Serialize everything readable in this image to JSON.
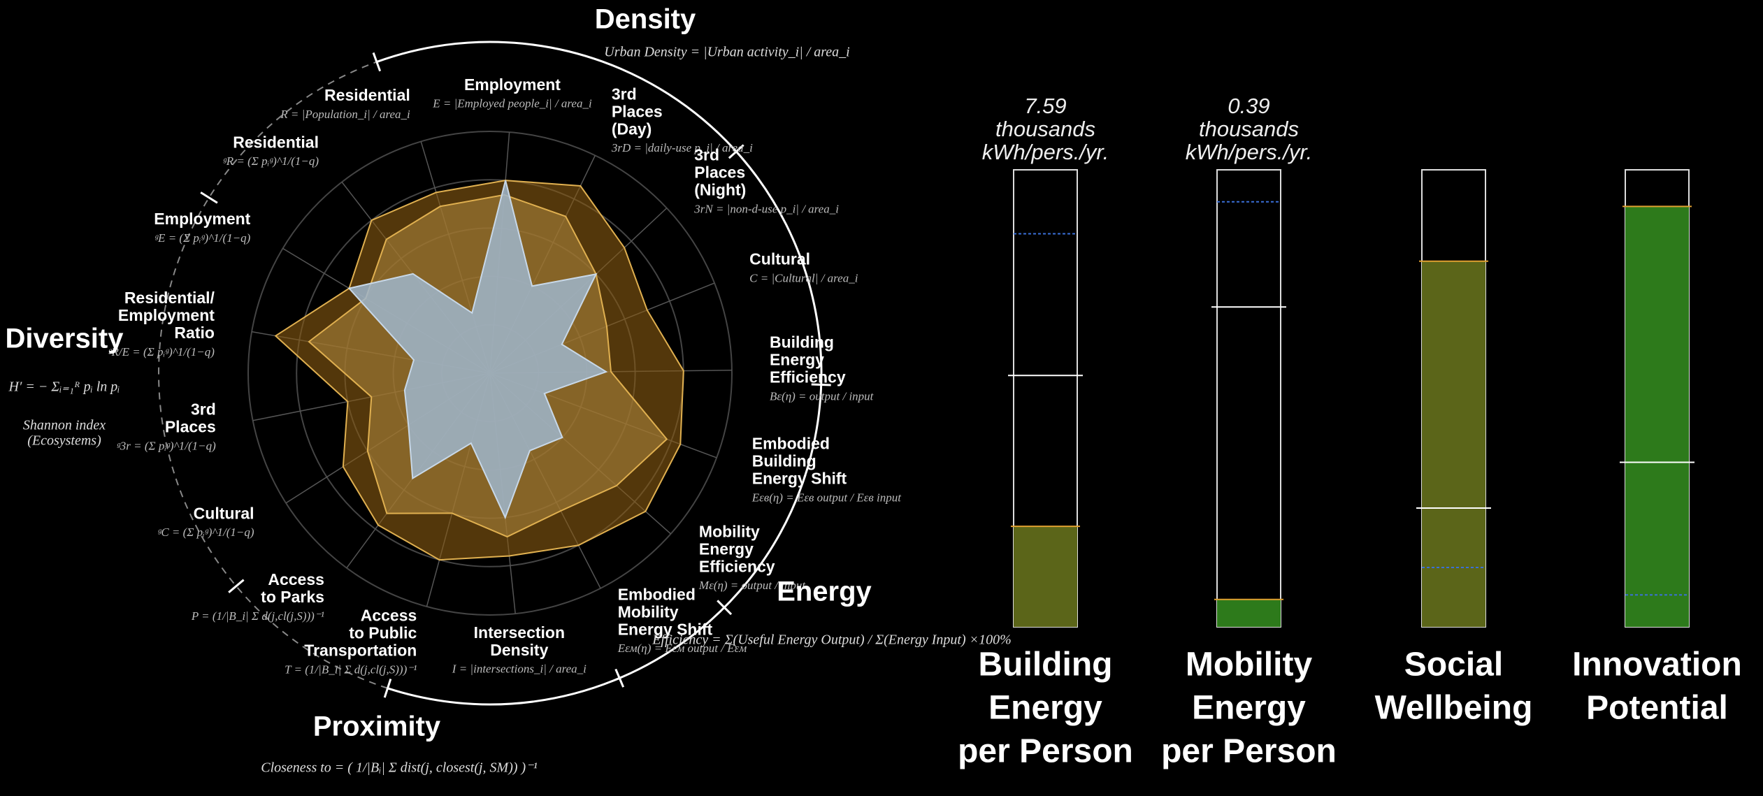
{
  "chart_data": [
    {
      "type": "radar",
      "axes": [
        {
          "lines": [
            "Employment"
          ],
          "formula": "E = |Employed people_i| / area_i"
        },
        {
          "lines": [
            "3rd",
            "Places",
            "(Day)"
          ],
          "formula": "3rD = |daily-use p_i| / area_i"
        },
        {
          "lines": [
            "3rd",
            "Places",
            "(Night)"
          ],
          "formula": "3rN = |non-d-use p_i| / area_i"
        },
        {
          "lines": [
            "Cultural"
          ],
          "formula": "C = |Cultural| / area_i"
        },
        {
          "lines": [
            "Building",
            "Energy",
            "Efficiency"
          ],
          "formula": "Bε(η) = output / input"
        },
        {
          "lines": [
            "Embodied",
            "Building",
            "Energy Shift"
          ],
          "formula": "Eεв(η) = Eεв output / Eεв input"
        },
        {
          "lines": [
            "Mobility",
            "Energy",
            "Efficiency"
          ],
          "formula": "Mε(η) = output / input"
        },
        {
          "lines": [
            "Embodied",
            "Mobility",
            "Energy Shift"
          ],
          "formula": "Eεм(η) = Eεм output / Eεм"
        },
        {
          "lines": [
            "Intersection",
            "Density"
          ],
          "formula": "I = |intersections_i| / area_i"
        },
        {
          "lines": [
            "Access",
            "to Public",
            "Transportation"
          ],
          "formula": "T = (1/|B_i| Σ d(j,cl(j,S)))⁻¹"
        },
        {
          "lines": [
            "Access",
            "to Parks"
          ],
          "formula": "P = (1/|B_i| Σ d(j,cl(j,S)))⁻¹"
        },
        {
          "lines": [
            "Cultural"
          ],
          "formula": "ᵍC = (Σ pᵢᵍ)^1/(1−q)"
        },
        {
          "lines": [
            "3rd",
            "Places"
          ],
          "formula": "ᵍ3r = (Σ pᵢᵍ)^1/(1−q)"
        },
        {
          "lines": [
            "Residential/",
            "Employment",
            "Ratio"
          ],
          "formula": "ᵍR/E = (Σ pᵢᵍ)^1/(1−q)"
        },
        {
          "lines": [
            "Employment"
          ],
          "formula": "ᵍE = (Σ pᵢᵍ)^1/(1−q)"
        },
        {
          "lines": [
            "Residential"
          ],
          "formula": "ᵍR = (Σ pᵢᵍ)^1/(1−q)"
        },
        {
          "lines": [
            "Residential"
          ],
          "formula": "R = |Population_i| / area_i"
        }
      ],
      "rlim": [
        0,
        5
      ],
      "rticks": [
        1,
        2,
        3,
        4,
        5
      ],
      "series": [
        {
          "color": "#8a5c12",
          "values": [
            4.0,
            4.3,
            3.8,
            3.5,
            4.0,
            4.2,
            4.3,
            4.0,
            3.8,
            4.0,
            3.9,
            3.6,
            3.0,
            4.5,
            3.4,
            4.0,
            3.9
          ]
        },
        {
          "color": "#a8823a",
          "values": [
            3.7,
            3.6,
            3.0,
            2.6,
            2.5,
            3.9,
            3.5,
            3.2,
            3.4,
            3.0,
            3.6,
            3.0,
            2.5,
            3.8,
            3.0,
            3.5,
            3.6
          ]
        },
        {
          "color": "#9fb6cc",
          "values": [
            4.0,
            2.0,
            3.0,
            1.6,
            2.4,
            1.2,
            2.0,
            1.8,
            3.0,
            1.5,
            2.7,
            2.0,
            1.8,
            1.6,
            3.4,
            2.6,
            1.3
          ]
        }
      ],
      "sections": [
        {
          "title": "Density",
          "formula": "Urban Density = |Urban activity_i| / area_i"
        },
        {
          "title": "Diversity",
          "formula": "H′ = − Σᵢ₌₁ᴿ pᵢ ln pᵢ",
          "notes": [
            "Shannon index",
            "(Ecosystems)"
          ]
        },
        {
          "title": "Proximity",
          "formula": "Closeness to = ( 1/|Bᵢ| Σ dist(j, closest(j, SM)) )⁻¹"
        },
        {
          "title": "Energy",
          "formula": "Efficiency = Σ(Useful Energy Output) / Σ(Energy Input) ×100%"
        }
      ]
    },
    {
      "type": "bar",
      "categories": [
        [
          "Building",
          "Energy",
          "per Person"
        ],
        [
          "Mobility",
          "Energy",
          "per Person"
        ],
        [
          "Social",
          "Wellbeing"
        ],
        [
          "Innovation",
          "Potential"
        ]
      ],
      "ylim": [
        0,
        100
      ],
      "values": [
        22,
        6,
        80,
        92
      ],
      "colors": [
        "#5b6519",
        "#2d7a1b",
        "#5b6519",
        "#2d7a1b"
      ],
      "reference_lines": [
        55,
        70,
        26,
        36
      ],
      "target_lines": [
        86,
        93,
        13,
        7
      ],
      "annotations": [
        [
          "7.59",
          "thousands",
          "kWh/pers./yr."
        ],
        [
          "0.39",
          "thousands",
          "kWh/pers./yr."
        ],
        null,
        null
      ]
    }
  ]
}
